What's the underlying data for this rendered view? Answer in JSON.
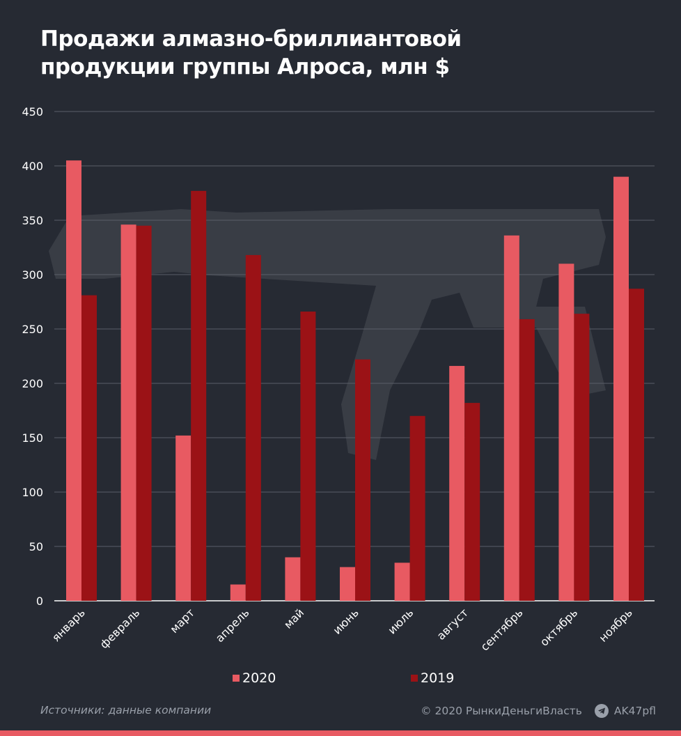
{
  "title_line1": "Продажи алмазно-бриллиантовой",
  "title_line2": "продукции группы Алроса, млн $",
  "chart_data": {
    "type": "bar",
    "title": "Продажи алмазно-бриллиантовой продукции группы Алроса, млн $",
    "categories": [
      "январь",
      "февраль",
      "март",
      "апрель",
      "май",
      "июнь",
      "июль",
      "август",
      "сентябрь",
      "октябрь",
      "ноябрь"
    ],
    "series": [
      {
        "name": "2020",
        "color": "#e85a62",
        "values": [
          405,
          346,
          152,
          15,
          40,
          31,
          35,
          216,
          336,
          310,
          390
        ]
      },
      {
        "name": "2019",
        "color": "#9b1216",
        "values": [
          281,
          345,
          377,
          318,
          266,
          222,
          170,
          182,
          259,
          264,
          287
        ]
      }
    ],
    "ylim": [
      0,
      450
    ],
    "yticks": [
      0,
      50,
      100,
      150,
      200,
      250,
      300,
      350,
      400,
      450
    ],
    "grid": true,
    "legend": "bottom-center"
  },
  "legend": {
    "label_2020": "2020",
    "label_2019": "2019"
  },
  "footer": {
    "source": "Источники: данные компании",
    "copyright": "© 2020 РынкиДеньгиВласть",
    "telegram": "AK47pfl"
  },
  "colors": {
    "background": "#262a33",
    "grid": "#5a5f69",
    "accent": "#e85a62",
    "dark_red": "#9b1216"
  }
}
